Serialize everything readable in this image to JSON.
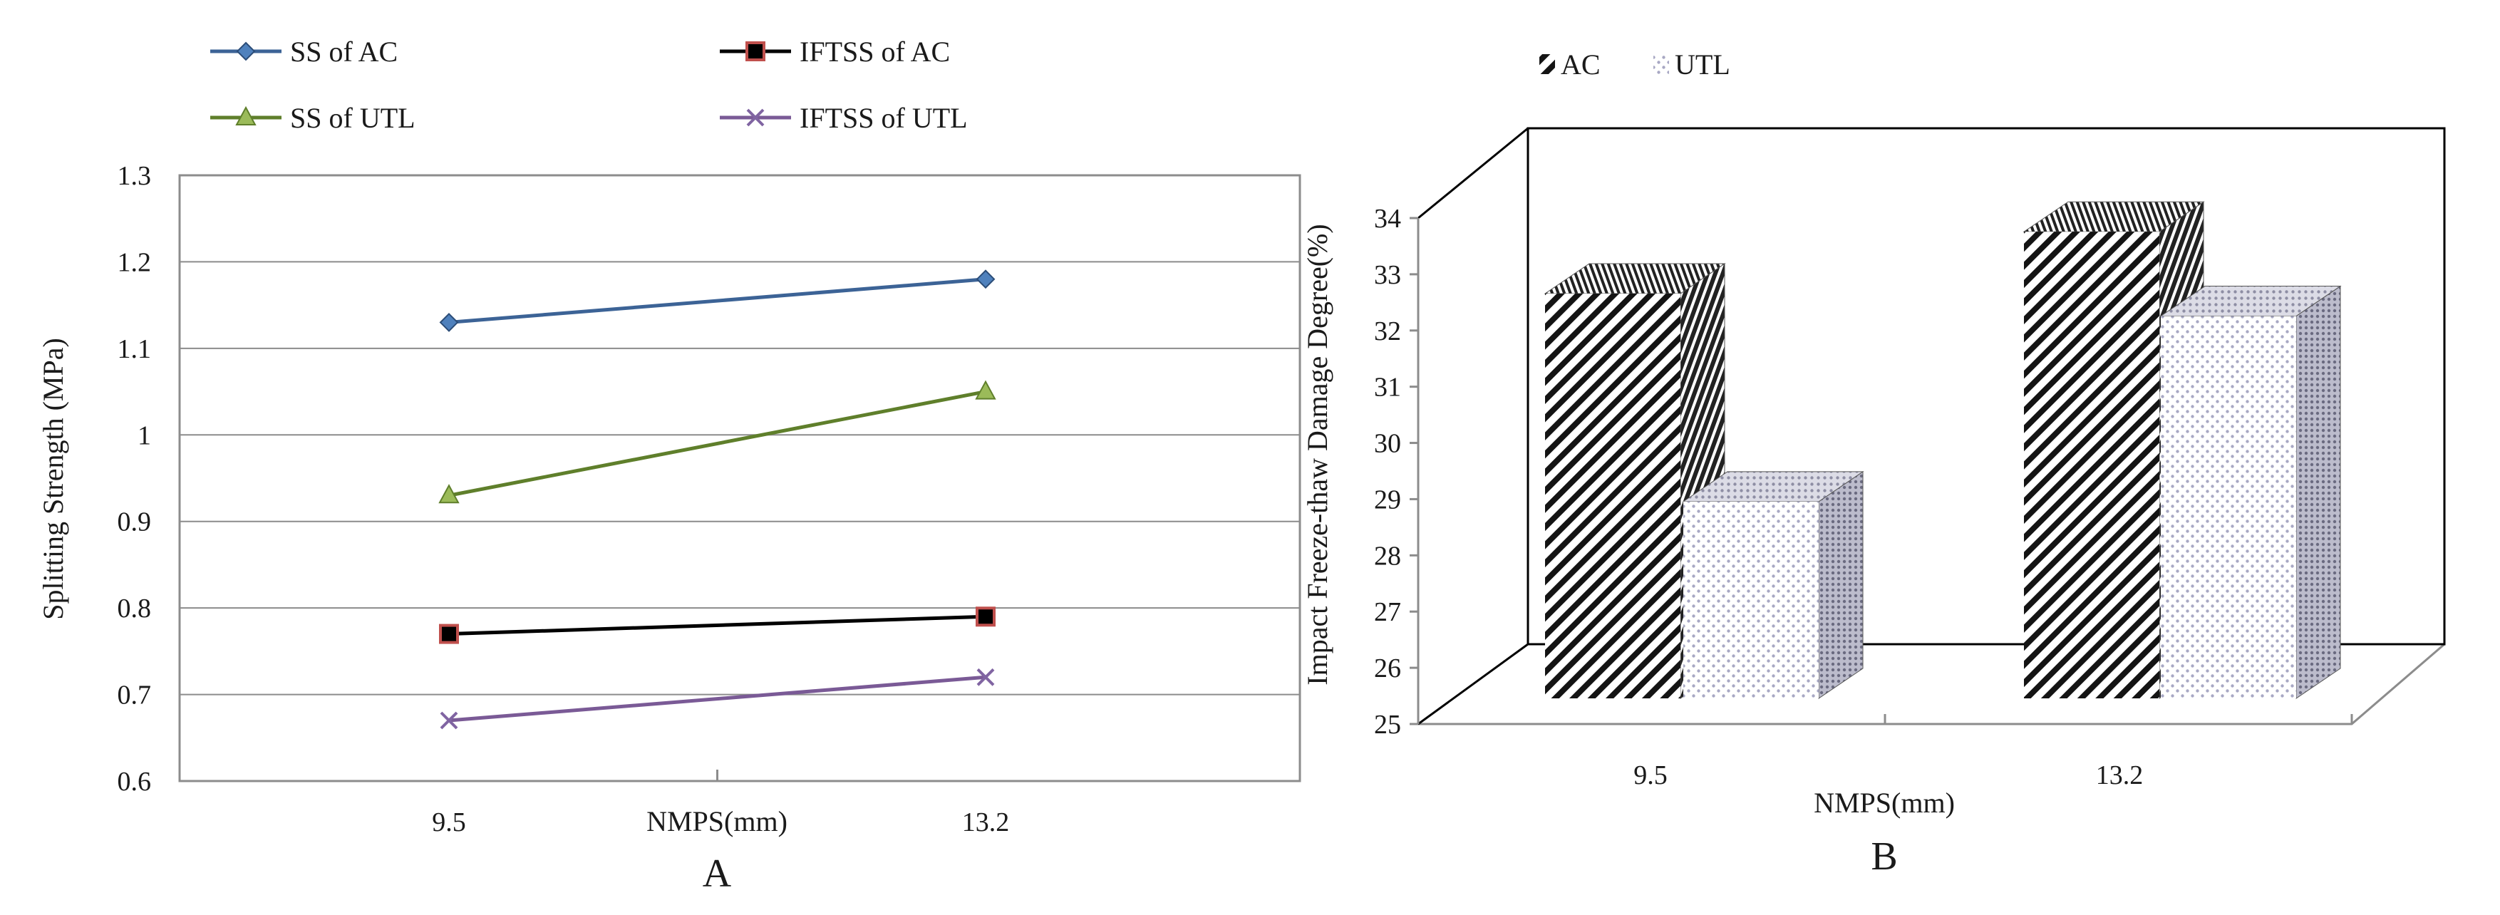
{
  "chart_data": [
    {
      "panel_label": "A",
      "type": "line",
      "xlabel": "NMPS(mm)",
      "ylabel": "Splitting Strength (MPa)",
      "categories": [
        "9.5",
        "13.2"
      ],
      "ylim": [
        0.6,
        1.3
      ],
      "yticks": [
        "0.6",
        "0.7",
        "0.8",
        "0.9",
        "1",
        "1.1",
        "1.2",
        "1.3"
      ],
      "grid": "horizontal",
      "legend_placement": "top",
      "series": [
        {
          "name": "SS of AC",
          "values": [
            1.13,
            1.18
          ],
          "color": "#3c6396",
          "marker": "diamond",
          "marker_color": "#4f81bd"
        },
        {
          "name": "IFTSS of AC",
          "values": [
            0.77,
            0.79
          ],
          "color": "#000000",
          "marker": "square",
          "marker_color": "#c0504d"
        },
        {
          "name": "SS of UTL",
          "values": [
            0.93,
            1.05
          ],
          "color": "#5f7f2b",
          "marker": "triangle",
          "marker_color": "#9bbb59"
        },
        {
          "name": "IFTSS of UTL",
          "values": [
            0.67,
            0.72
          ],
          "color": "#7a5a96",
          "marker": "x",
          "marker_color": "#8064a2"
        }
      ]
    },
    {
      "panel_label": "B",
      "type": "bar",
      "xlabel": "NMPS(mm)",
      "ylabel": "Impact Freeze-thaw Damage Degree(%)",
      "categories": [
        "9.5",
        "13.2"
      ],
      "ylim": [
        25,
        34
      ],
      "yticks": [
        "25",
        "26",
        "27",
        "28",
        "29",
        "30",
        "31",
        "32",
        "33",
        "34"
      ],
      "grid": "none",
      "legend_placement": "top-left",
      "series": [
        {
          "name": "AC",
          "values": [
            32.2,
            33.3
          ],
          "pattern": "diagonal-stripes"
        },
        {
          "name": "UTL",
          "values": [
            28.5,
            31.8
          ],
          "pattern": "dots"
        }
      ]
    }
  ]
}
